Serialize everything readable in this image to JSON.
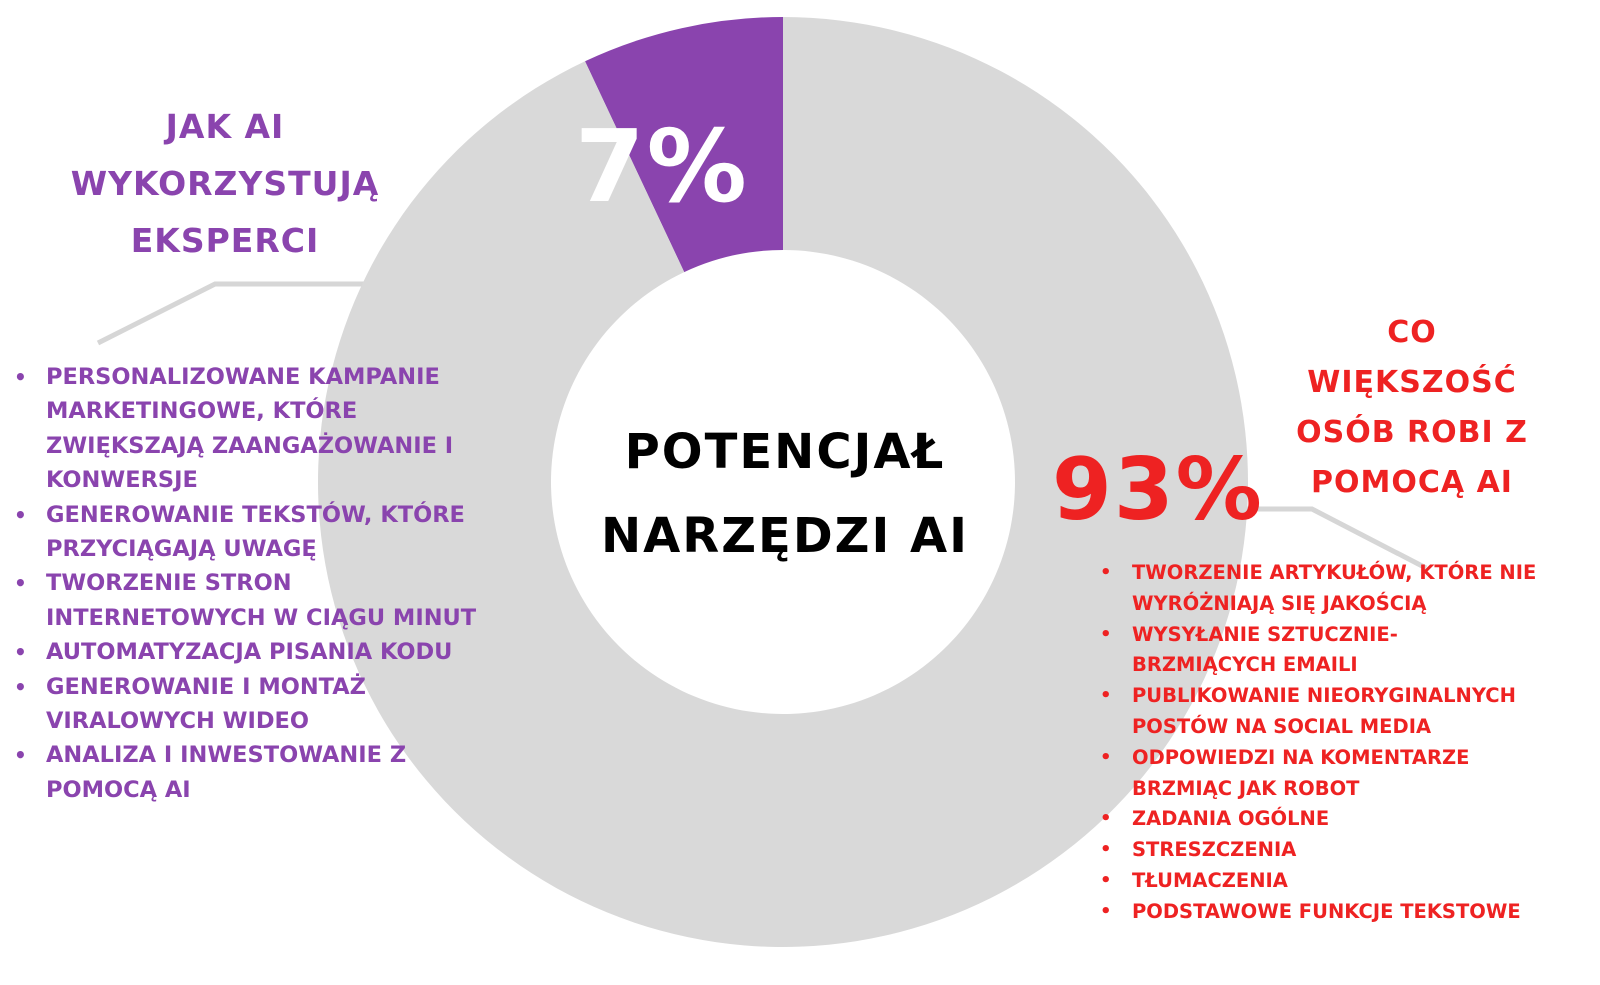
{
  "chart_data": {
    "type": "pie",
    "style": "donut",
    "slices": [
      {
        "label": "7%",
        "value": 7,
        "color": "#8a44ae"
      },
      {
        "label": "93%",
        "value": 93,
        "color": "#d9d9d9"
      }
    ],
    "center_text": [
      "POTENCJAŁ",
      "NARZĘDZI AI"
    ]
  },
  "left_heading": [
    "JAK AI",
    "WYKORZYSTUJĄ",
    "EKSPERCI"
  ],
  "left_items": [
    [
      "PERSONALIZOWANE KAMPANIE",
      "MARKETINGOWE, KTÓRE",
      "ZWIĘKSZAJĄ ZAANGAŻOWANIE I",
      "KONWERSJE"
    ],
    [
      "GENEROWANIE TEKSTÓW, KTÓRE",
      "PRZYCIĄGAJĄ UWAGĘ"
    ],
    [
      "TWORZENIE STRON",
      "INTERNETOWYCH W CIĄGU MINUT"
    ],
    [
      "AUTOMATYZACJA PISANIA KODU"
    ],
    [
      "GENEROWANIE I MONTAŻ",
      "VIRALOWYCH WIDEO"
    ],
    [
      "ANALIZA I INWESTOWANIE Z",
      "POMOCĄ AI"
    ]
  ],
  "right_heading": [
    "CO",
    "WIĘKSZOŚĆ",
    "OSÓB ROBI Z",
    "POMOCĄ AI"
  ],
  "right_items": [
    [
      "TWORZENIE ARTYKUŁÓW, KTÓRE NIE",
      "WYRÓŻNIAJĄ SIĘ JAKOŚCIĄ"
    ],
    [
      "WYSYŁANIE SZTUCZNIE-",
      "BRZMIĄCYCH EMAILI"
    ],
    [
      "PUBLIKOWANIE NIEORYGINALNYCH",
      "POSTÓW NA SOCIAL MEDIA"
    ],
    [
      "ODPOWIEDZI NA KOMENTARZE",
      "BRZMIĄC JAK ROBOT"
    ],
    [
      "ZADANIA OGÓLNE"
    ],
    [
      "STRESZCZENIA"
    ],
    [
      "TŁUMACZENIA"
    ],
    [
      "PODSTAWOWE FUNKCJE TEKSTOWE"
    ]
  ],
  "bullet": "•",
  "colors": {
    "accent": "#8a44ae",
    "alert": "#ee2222",
    "ring": "#d9d9d9",
    "leader": "#d6d6d6"
  }
}
